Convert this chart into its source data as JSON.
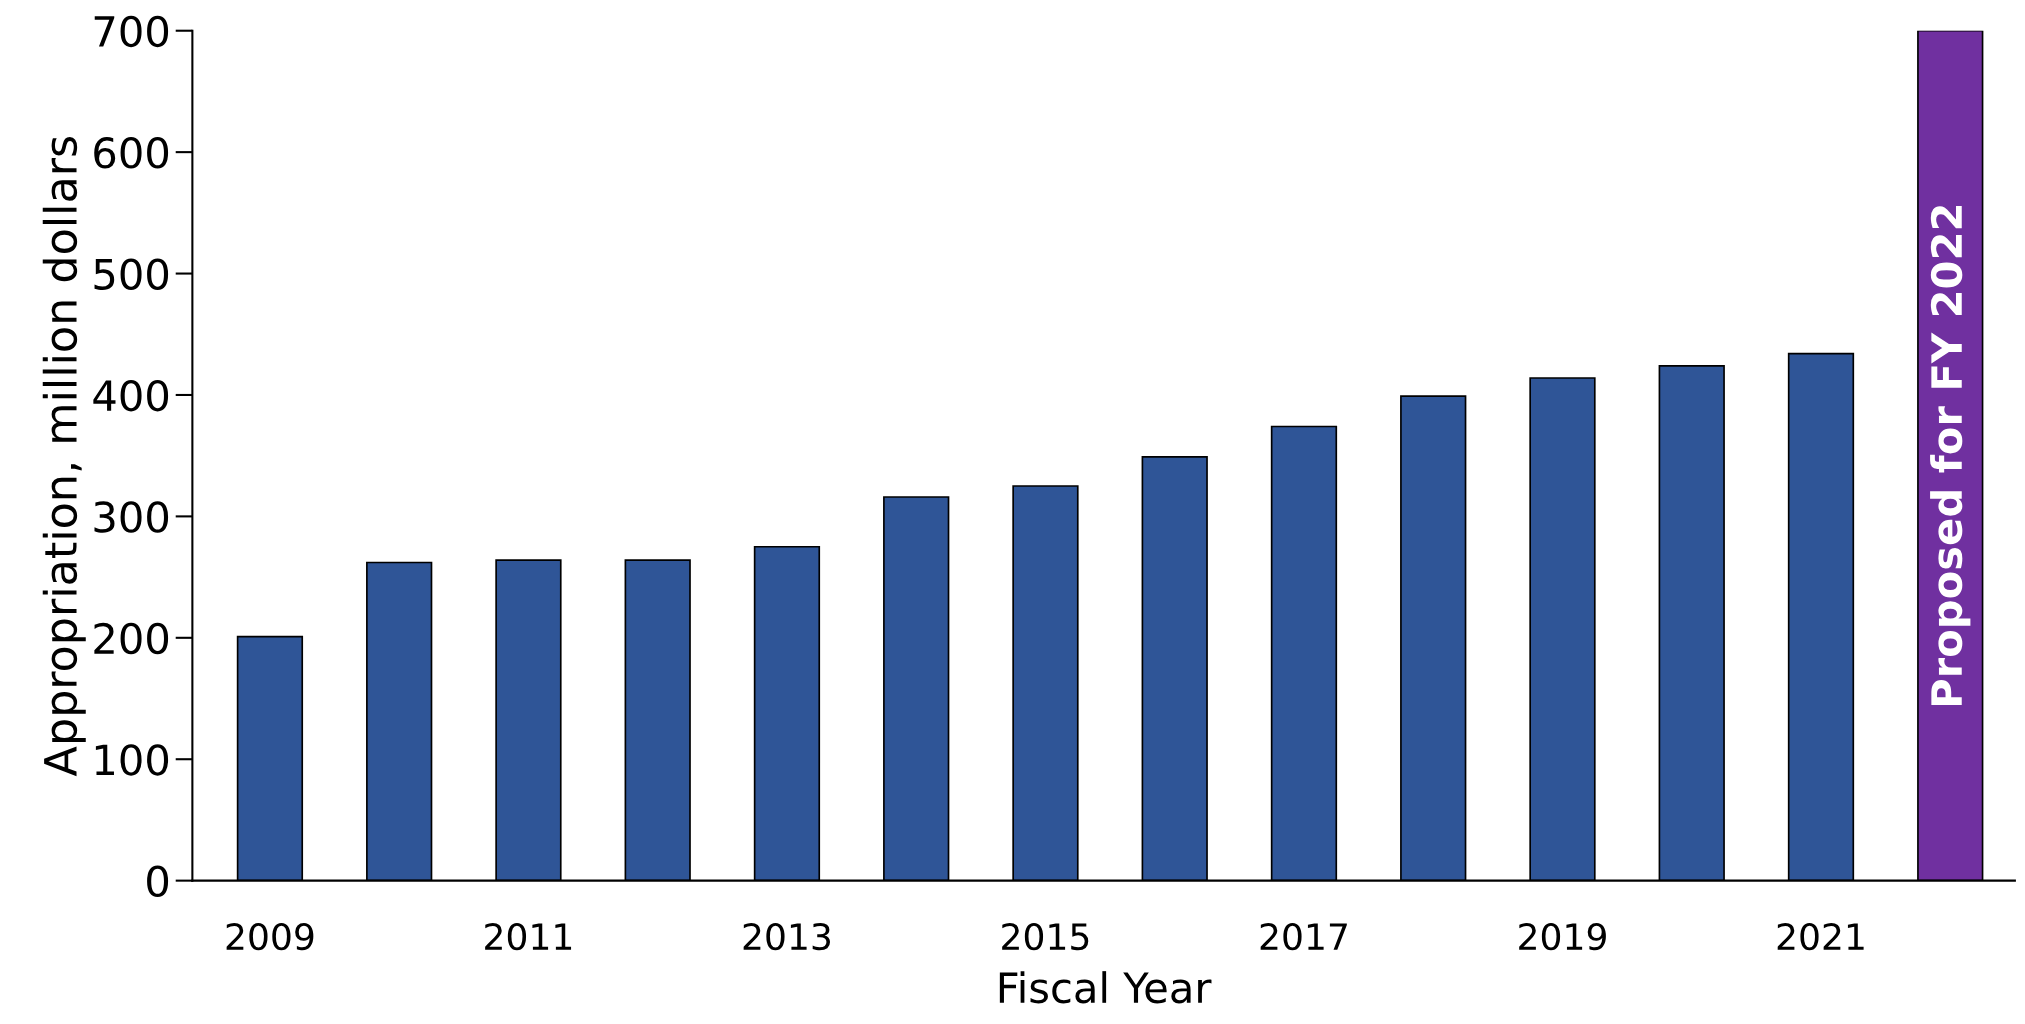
{
  "chart_data": {
    "type": "bar",
    "xlabel": "Fiscal Year",
    "ylabel": "Appropriation, million dollars",
    "categories": [
      "2009",
      null,
      "2011",
      null,
      "2013",
      null,
      "2015",
      null,
      "2017",
      null,
      "2019",
      null,
      "2021",
      null
    ],
    "values": [
      201,
      262,
      264,
      264,
      275,
      316,
      325,
      349,
      374,
      399,
      414,
      424,
      434,
      700
    ],
    "colors": [
      "#2f5597",
      "#2f5597",
      "#2f5597",
      "#2f5597",
      "#2f5597",
      "#2f5597",
      "#2f5597",
      "#2f5597",
      "#2f5597",
      "#2f5597",
      "#2f5597",
      "#2f5597",
      "#2f5597",
      "#7030a0"
    ],
    "value_labels": [
      null,
      null,
      null,
      null,
      null,
      null,
      null,
      null,
      null,
      null,
      null,
      null,
      null,
      "Proposed for FY 2022"
    ],
    "ylim": [
      0,
      700
    ],
    "yticks": [
      0,
      100,
      200,
      300,
      400,
      500,
      600,
      700
    ],
    "grid": false
  }
}
